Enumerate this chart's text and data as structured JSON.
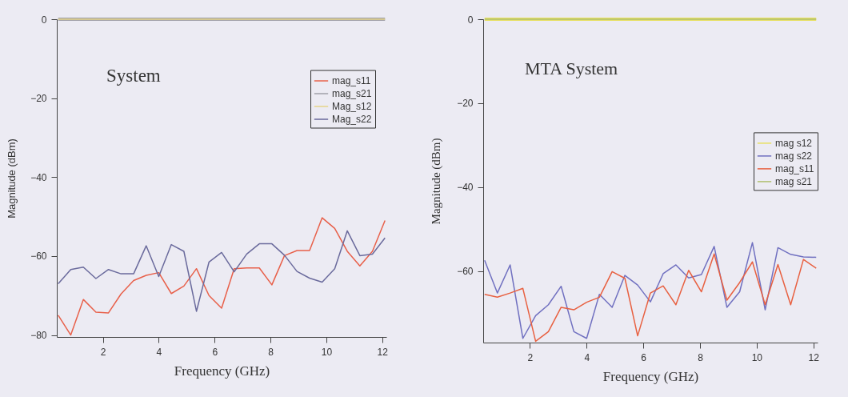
{
  "chart_data": [
    {
      "type": "line",
      "title": "System",
      "xlabel": "Frequency (GHz)",
      "ylabel": "Magnitude (dBm)",
      "x": [
        0.4,
        0.85,
        1.3,
        1.75,
        2.2,
        2.65,
        3.1,
        3.55,
        4,
        4.45,
        4.9,
        5.35,
        5.8,
        6.25,
        6.7,
        7.15,
        7.6,
        8.05,
        8.5,
        8.95,
        9.4,
        9.85,
        10.3,
        10.75,
        11.2,
        11.65,
        12.1
      ],
      "series": [
        {
          "name": "mag_s11",
          "color": "#e8604a",
          "values": [
            -75,
            -80,
            -71,
            -74.2,
            -74.4,
            -69.6,
            -66.2,
            -64.9,
            -64.2,
            -69.5,
            -67.6,
            -63.2,
            -70,
            -73.2,
            -63.2,
            -63,
            -63,
            -67.3,
            -59.9,
            -58.6,
            -58.6,
            -50.3,
            -53,
            -58.8,
            -62.5,
            -58.8,
            -51
          ]
        },
        {
          "name": "mag_s21",
          "color": "#a0a0a8",
          "values": [
            0,
            0,
            0,
            0,
            0,
            0,
            0,
            0,
            0,
            0,
            0,
            0,
            0,
            0,
            0,
            0,
            0,
            0,
            0,
            0,
            0,
            0,
            0,
            0,
            0,
            0,
            0
          ]
        },
        {
          "name": "Mag_s12",
          "color": "#e6d48a",
          "values": [
            0,
            0,
            0,
            0,
            0,
            0,
            0,
            0,
            0,
            0,
            0,
            0,
            0,
            0,
            0,
            0,
            0,
            0,
            0,
            0,
            0,
            0,
            0,
            0,
            0,
            0,
            0
          ]
        },
        {
          "name": "Mag_s22",
          "color": "#6a6a9c",
          "values": [
            -67,
            -63.4,
            -62.8,
            -65.7,
            -63.4,
            -64.5,
            -64.5,
            -57.4,
            -65.2,
            -57.1,
            -58.8,
            -74,
            -61.5,
            -59.1,
            -64,
            -59.5,
            -56.9,
            -56.9,
            -59.8,
            -63.9,
            -65.6,
            -66.6,
            -63.2,
            -53.6,
            -59.9,
            -59.5,
            -55.4
          ]
        }
      ],
      "xlim": [
        0.35,
        12.15
      ],
      "ylim": [
        -80.5,
        0
      ],
      "xticks": [
        2,
        4,
        6,
        8,
        10,
        12
      ],
      "yticks": [
        -80,
        -60,
        -40,
        -20,
        0
      ],
      "legend": "top right",
      "grid": false
    },
    {
      "type": "line",
      "title": "MTA System",
      "xlabel": "Frequency (GHz)",
      "ylabel": "Magnitude (dBm)",
      "x": [
        0.4,
        0.85,
        1.3,
        1.75,
        2.2,
        2.65,
        3.1,
        3.55,
        4,
        4.45,
        4.9,
        5.35,
        5.8,
        6.25,
        6.7,
        7.15,
        7.6,
        8.05,
        8.5,
        8.95,
        9.4,
        9.85,
        10.3,
        10.75,
        11.2,
        11.65,
        12.1
      ],
      "series": [
        {
          "name": "mag s12",
          "color": "#e8e060",
          "values": [
            0,
            0,
            0,
            0,
            0,
            0,
            0,
            0,
            0,
            0,
            0,
            0,
            0,
            0,
            0,
            0,
            0,
            0,
            0,
            0,
            0,
            0,
            0,
            0,
            0,
            0,
            0
          ]
        },
        {
          "name": "mag s22",
          "color": "#7070c0",
          "values": [
            -57.4,
            -65.2,
            -58.5,
            -76,
            -70.6,
            -68,
            -63.6,
            -74.4,
            -76,
            -65.5,
            -68.6,
            -61,
            -63.3,
            -67.3,
            -60.6,
            -58.5,
            -61.6,
            -60.8,
            -54.1,
            -68.6,
            -64.9,
            -53.2,
            -69.2,
            -54.4,
            -56,
            -56.6,
            -56.7
          ]
        },
        {
          "name": "mag_s11",
          "color": "#e86040",
          "values": [
            -65.5,
            -66.2,
            -65.2,
            -64.1,
            -76.7,
            -74.4,
            -68.6,
            -69.2,
            -67.4,
            -66.2,
            -60.1,
            -61.7,
            -75.4,
            -65.2,
            -63.5,
            -68,
            -59.8,
            -64.9,
            -55.9,
            -66.9,
            -62.7,
            -57.8,
            -68,
            -58.4,
            -68,
            -57.2,
            -59.3
          ]
        },
        {
          "name": "mag s21",
          "color": "#b0c070",
          "values": [
            0,
            0,
            0,
            0,
            0,
            0,
            0,
            0,
            0,
            0,
            0,
            0,
            0,
            0,
            0,
            0,
            0,
            0,
            0,
            0,
            0,
            0,
            0,
            0,
            0,
            0,
            0
          ]
        }
      ],
      "xlim": [
        0.35,
        12.15
      ],
      "ylim": [
        -77,
        0
      ],
      "xticks": [
        2,
        4,
        6,
        8,
        10,
        12
      ],
      "yticks": [
        -60,
        -40,
        -20,
        0
      ],
      "legend": "right",
      "grid": false
    }
  ]
}
